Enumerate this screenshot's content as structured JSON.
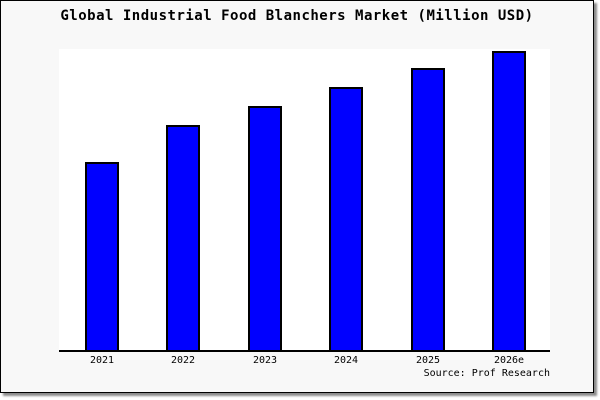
{
  "title": "Global Industrial Food Blanchers Market (Million USD)",
  "source": "Source: Prof Research",
  "colors": {
    "bar_fill": "#0000ff",
    "bar_border": "#000000",
    "plot_bg": "#ffffff",
    "margin_bg": "#f8f8f8",
    "axis": "#000000",
    "frame_border": "#000000",
    "shadow": "#8c8c8c"
  },
  "chart_data": {
    "type": "bar",
    "title": "Global Industrial Food Blanchers Market (Million USD)",
    "categories": [
      "2021",
      "2022",
      "2023",
      "2024",
      "2025",
      "2026e"
    ],
    "values": [
      62.9,
      75.3,
      81.6,
      88.0,
      94.3,
      100
    ],
    "xlabel": "",
    "ylabel": "",
    "ylim": [
      0,
      100
    ],
    "value_note": "no y-axis or data labels shown; values are bar heights relative to 2026e = 100",
    "grid": false,
    "legend": false,
    "source": "Source: Prof Research"
  }
}
